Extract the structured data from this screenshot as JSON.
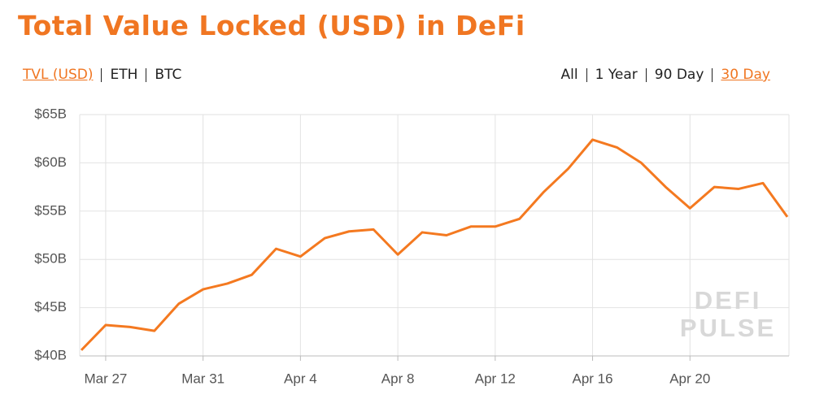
{
  "chart_data": {
    "type": "line",
    "title": "Total Value Locked (USD) in DeFi",
    "unit_options": [
      "TVL (USD)",
      "ETH",
      "BTC"
    ],
    "range_options": [
      "All",
      "1 Year",
      "90 Day",
      "30 Day"
    ],
    "watermark": [
      "DEFI",
      "PULSE"
    ],
    "categories": [
      null,
      "Mar 27",
      null,
      null,
      null,
      "Mar 31",
      null,
      null,
      null,
      "Apr 4",
      null,
      null,
      null,
      "Apr 8",
      null,
      null,
      null,
      "Apr 12",
      null,
      null,
      null,
      "Apr 16",
      null,
      null,
      null,
      "Apr 20",
      null,
      null,
      null,
      null
    ],
    "series": [
      {
        "name": "TVL (USD)",
        "color": "#f47920",
        "values": [
          40.6,
          43.2,
          43.0,
          42.6,
          45.4,
          46.9,
          47.5,
          48.4,
          51.1,
          50.3,
          52.2,
          52.9,
          53.1,
          50.5,
          52.8,
          52.5,
          53.4,
          53.4,
          54.2,
          57.0,
          59.4,
          62.4,
          61.6,
          60.0,
          57.5,
          55.3,
          57.5,
          57.3,
          57.9,
          54.4
        ]
      }
    ],
    "ylim": [
      40,
      65
    ],
    "yticks": [
      {
        "value": 40,
        "label": "$40B"
      },
      {
        "value": 45,
        "label": "$45B"
      },
      {
        "value": 50,
        "label": "$50B"
      },
      {
        "value": 55,
        "label": "$55B"
      },
      {
        "value": 60,
        "label": "$60B"
      },
      {
        "value": 65,
        "label": "$65B"
      }
    ],
    "grid": true
  }
}
